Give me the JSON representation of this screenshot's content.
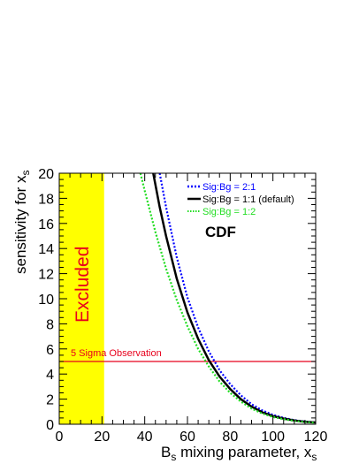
{
  "chart_data": {
    "type": "line",
    "title": "",
    "xlabel_main": "B",
    "xlabel_sub": "s",
    "xlabel_mid": " mixing parameter, x",
    "xlabel_sub2": "s",
    "ylabel_main": "sensitivity for x",
    "ylabel_sub": "s",
    "xlim": [
      0,
      120
    ],
    "ylim": [
      0,
      20
    ],
    "x_ticks": [
      0,
      20,
      40,
      60,
      80,
      100,
      120
    ],
    "y_ticks": [
      0,
      2,
      4,
      6,
      8,
      10,
      12,
      14,
      16,
      18,
      20
    ],
    "excluded_region": {
      "x_max": 21,
      "label": "Excluded",
      "color": "#ffff00"
    },
    "reference_line": {
      "y": 5,
      "label": "5 Sigma Observation",
      "color": "#e8001c"
    },
    "annotation": "CDF",
    "series": [
      {
        "name": "Sig:Bg = 2:1",
        "color": "#0000ff",
        "style": "dotted",
        "x": [
          47,
          50,
          55,
          60,
          65,
          70,
          75,
          80,
          85,
          90,
          95,
          100,
          105,
          110,
          115,
          120
        ],
        "y": [
          20,
          17.3,
          13.3,
          10.1,
          7.7,
          5.8,
          4.3,
          3.2,
          2.3,
          1.6,
          1.1,
          0.75,
          0.5,
          0.33,
          0.22,
          0.15
        ]
      },
      {
        "name": "Sig:Bg = 1:1 (default)",
        "color": "#000000",
        "style": "solid",
        "x": [
          44,
          47,
          50,
          55,
          60,
          65,
          70,
          75,
          80,
          85,
          90,
          95,
          100,
          105,
          110,
          115,
          120
        ],
        "y": [
          20,
          17.3,
          15,
          11.6,
          8.9,
          6.8,
          5.1,
          3.8,
          2.8,
          2.0,
          1.4,
          0.95,
          0.65,
          0.45,
          0.3,
          0.2,
          0.14
        ]
      },
      {
        "name": "Sig:Bg = 1:2",
        "color": "#22dd22",
        "style": "dotted",
        "x": [
          38,
          40,
          45,
          50,
          55,
          60,
          65,
          70,
          75,
          80,
          85,
          90,
          95,
          100,
          105,
          110,
          115,
          120
        ],
        "y": [
          20,
          18.6,
          15.3,
          12.4,
          9.9,
          7.8,
          6.0,
          4.6,
          3.4,
          2.5,
          1.8,
          1.25,
          0.85,
          0.58,
          0.4,
          0.27,
          0.18,
          0.12
        ]
      }
    ]
  }
}
